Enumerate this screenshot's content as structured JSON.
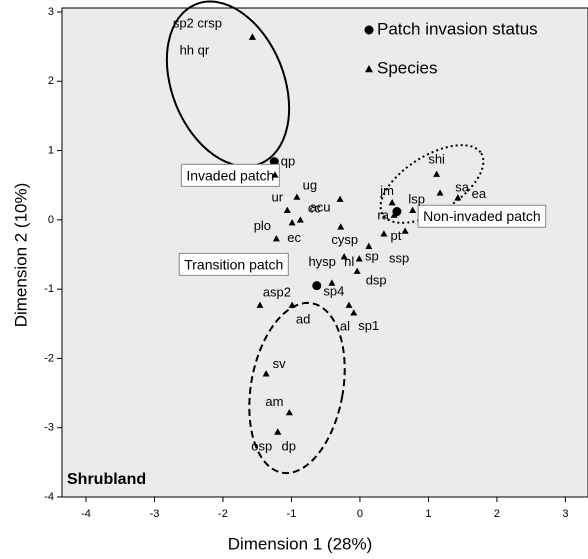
{
  "chart_data": {
    "type": "scatter",
    "x_label": "Dimension 1 (28%)",
    "y_label": "Dimension 2 (10%)",
    "annotation": "Shrubland",
    "xlim": [
      -4.35,
      3.33
    ],
    "ylim": [
      -4,
      3
    ],
    "xticks": [
      -4,
      -3,
      -2,
      -1,
      0,
      1,
      2,
      3
    ],
    "yticks": [
      -4,
      -3,
      -2,
      -1,
      0,
      1,
      2,
      3
    ],
    "series": [
      {
        "name": "Patch invasion status",
        "marker": "circle",
        "color": "#000000",
        "labels": [
          "Invaded patch",
          "Non-invaded patch",
          "Transition patch"
        ],
        "x": [
          -1.25,
          0.54,
          -0.63
        ],
        "values": [
          0.84,
          0.12,
          -0.95
        ]
      },
      {
        "name": "Species",
        "marker": "triangle",
        "color": "#000000",
        "labels": [
          "sp2 crsp",
          "hh qr",
          "qp",
          "ug",
          "ur",
          "cc",
          "ec",
          "plo",
          "acu",
          "jm",
          "ra",
          "lsp",
          "sa",
          "ea",
          "shi",
          "pt",
          "ssp",
          "cysp",
          "sp",
          "hl",
          "hysp",
          "dsp",
          "sp4",
          "asp2",
          "ad",
          "al",
          "sp1",
          "sv",
          "am",
          "osp",
          "dp"
        ],
        "x": [
          -1.57,
          -1.57,
          -1.24,
          -0.92,
          -1.06,
          -0.87,
          -0.99,
          -1.22,
          -0.29,
          0.47,
          0.5,
          0.77,
          1.17,
          1.43,
          1.12,
          0.35,
          0.66,
          -0.28,
          0.13,
          -0.01,
          -0.23,
          -0.04,
          -0.41,
          -1.46,
          -0.99,
          -0.16,
          -0.09,
          -1.37,
          -1.03,
          -1.2,
          -1.2
        ],
        "values": [
          2.64,
          2.64,
          0.65,
          0.33,
          0.14,
          0.0,
          -0.04,
          -0.27,
          0.3,
          0.25,
          0.07,
          0.14,
          0.39,
          0.32,
          0.66,
          -0.2,
          -0.16,
          -0.1,
          -0.38,
          -0.56,
          -0.53,
          -0.74,
          -0.91,
          -1.23,
          -1.23,
          -1.23,
          -1.34,
          -2.22,
          -2.78,
          -3.06,
          -3.06
        ]
      }
    ]
  }
}
